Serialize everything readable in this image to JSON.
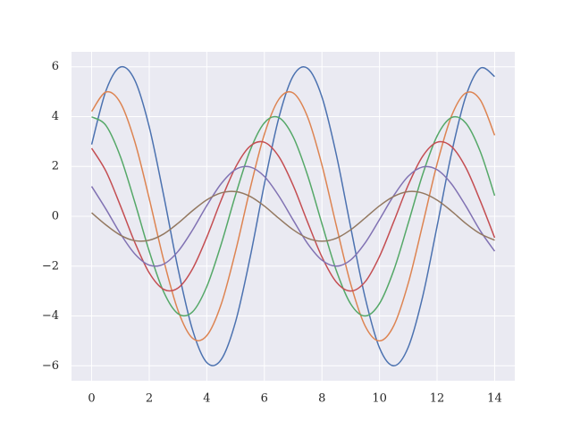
{
  "chart_data": {
    "type": "line",
    "x": [
      0,
      0.5,
      1,
      1.5,
      2,
      2.5,
      3,
      3.5,
      4,
      4.5,
      5,
      5.5,
      6,
      6.5,
      7,
      7.5,
      8,
      8.5,
      9,
      9.5,
      10,
      10.5,
      11,
      11.5,
      12,
      12.5,
      13,
      13.5,
      14
    ],
    "series": [
      {
        "color": "#4c72b0",
        "values": [
          2.88,
          5.05,
          5.99,
          5.46,
          3.59,
          0.85,
          -2.1,
          -4.54,
          -5.87,
          -5.75,
          -4.23,
          -1.68,
          1.29,
          3.94,
          5.63,
          5.94,
          4.79,
          2.47,
          -0.45,
          -3.26,
          -5.28,
          -6.0,
          -5.25,
          -3.22,
          -0.4,
          2.52,
          4.82,
          5.94,
          5.61
        ]
      },
      {
        "color": "#dd8452",
        "values": [
          4.21,
          4.99,
          4.55,
          2.99,
          0.71,
          -1.75,
          -3.78,
          -4.89,
          -4.79,
          -3.53,
          -1.4,
          1.08,
          3.29,
          4.69,
          4.95,
          3.99,
          2.06,
          -0.38,
          -2.72,
          -4.4,
          -5.0,
          -4.38,
          -2.68,
          -0.33,
          2.1,
          4.02,
          4.95,
          4.67,
          3.25
        ]
      },
      {
        "color": "#55a868",
        "values": [
          3.99,
          3.64,
          2.39,
          0.56,
          -1.4,
          -3.03,
          -3.91,
          -3.84,
          -2.82,
          -1.12,
          0.86,
          2.63,
          3.75,
          3.96,
          3.19,
          1.65,
          -0.3,
          -2.18,
          -3.52,
          -4.0,
          -3.5,
          -2.15,
          -0.27,
          1.68,
          3.22,
          3.96,
          3.74,
          2.6,
          0.83
        ]
      },
      {
        "color": "#c44e52",
        "values": [
          2.73,
          1.8,
          0.42,
          -1.05,
          -2.27,
          -2.93,
          -2.88,
          -2.12,
          -0.84,
          0.65,
          1.97,
          2.81,
          2.97,
          2.4,
          1.24,
          -0.23,
          -1.63,
          -2.64,
          -3.0,
          -2.63,
          -1.61,
          -0.2,
          1.26,
          2.41,
          2.97,
          2.8,
          1.95,
          0.62,
          -0.86
        ]
      },
      {
        "color": "#8172b3",
        "values": [
          1.2,
          0.28,
          -0.7,
          -1.51,
          -1.96,
          -1.92,
          -1.41,
          -0.56,
          0.43,
          1.31,
          1.88,
          1.98,
          1.6,
          0.82,
          -0.15,
          -1.09,
          -1.76,
          -2.0,
          -1.75,
          -1.07,
          -0.13,
          0.84,
          1.61,
          1.98,
          1.87,
          1.3,
          0.41,
          -0.58,
          -1.4
        ]
      },
      {
        "color": "#937860",
        "values": [
          0.14,
          -0.35,
          -0.76,
          -0.98,
          -0.96,
          -0.71,
          -0.28,
          0.22,
          0.66,
          0.94,
          0.99,
          0.8,
          0.41,
          -0.08,
          -0.54,
          -0.88,
          -1.0,
          -0.88,
          -0.54,
          -0.07,
          0.42,
          0.8,
          0.99,
          0.93,
          0.65,
          0.21,
          -0.29,
          -0.7,
          -0.96
        ]
      }
    ],
    "xlim": [
      -0.7,
      14.7
    ],
    "xticks": [
      0,
      2,
      4,
      6,
      8,
      10,
      12,
      14
    ],
    "ylim": [
      -6.6,
      6.6
    ],
    "yticks": [
      {
        "value": -6,
        "label": "−6"
      },
      {
        "value": -4,
        "label": "−4"
      },
      {
        "value": -2,
        "label": "−2"
      },
      0,
      2,
      4,
      6
    ],
    "grid": true,
    "background": "#eaeaf2"
  }
}
